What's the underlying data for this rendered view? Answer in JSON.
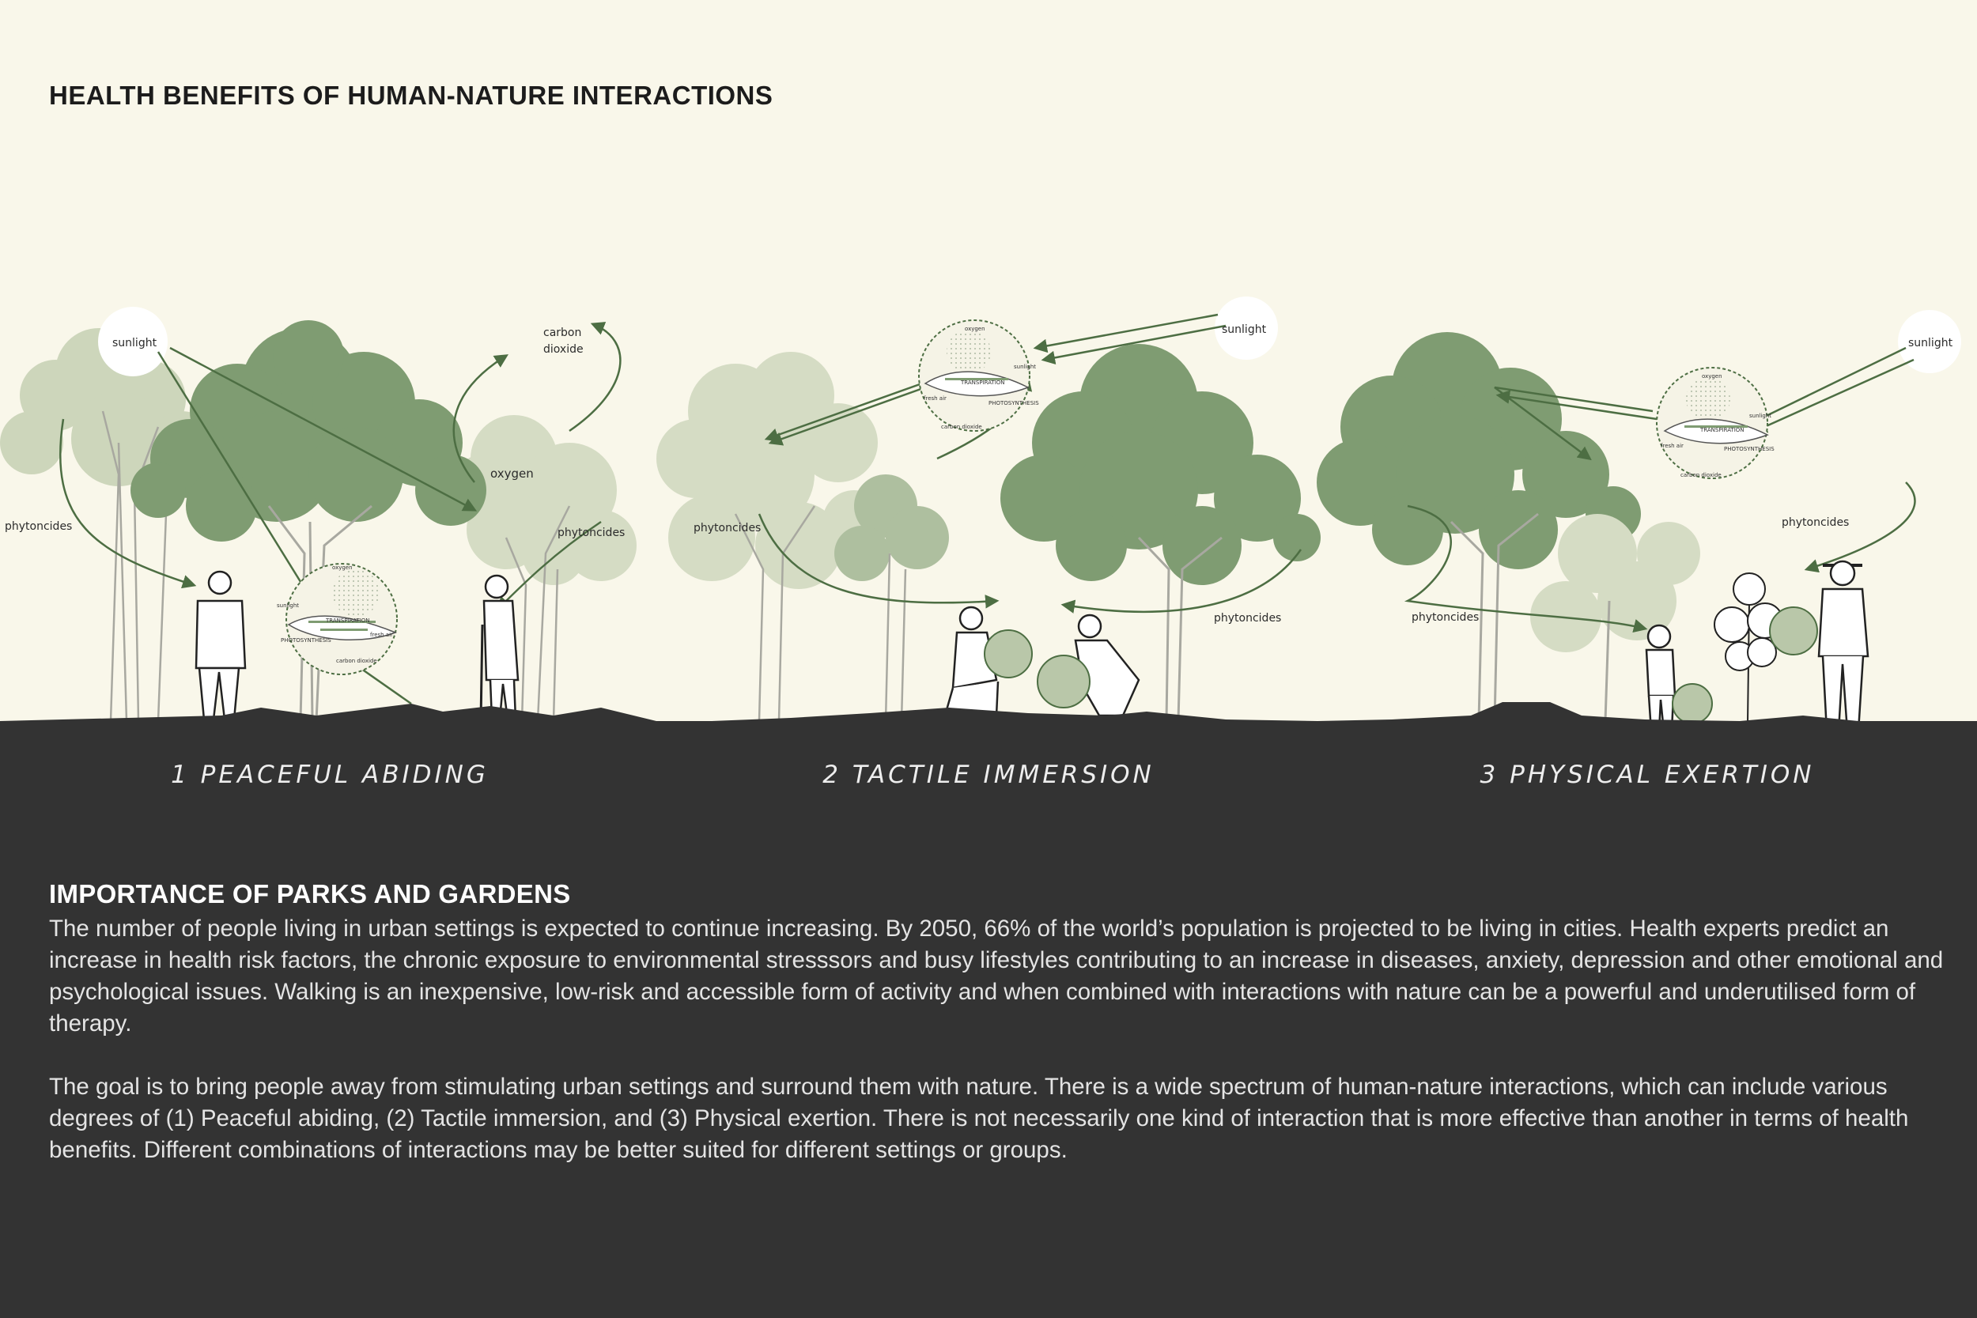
{
  "title": "HEALTH BENEFITS OF HUMAN-NATURE INTERACTIONS",
  "colors": {
    "background": "#f9f7ea",
    "ground": "#333333",
    "tree_dark": "#7f9c72",
    "tree_light": "#c9d3b6",
    "arrow": "#4d6e43"
  },
  "panels": [
    {
      "caption": "1 PEACEFUL ABIDING",
      "labels": {
        "sunlight": "sunlight",
        "carbon": "carbon",
        "dioxide": "dioxide",
        "oxygen": "oxygen",
        "phytoncides_left": "phytoncides",
        "phytoncides_right": "phytoncides"
      }
    },
    {
      "caption": "2 TACTILE IMMERSION",
      "labels": {
        "sunlight": "sunlight",
        "phytoncides_left": "phytoncides",
        "phytoncides_right": "phytoncides"
      }
    },
    {
      "caption": "3 PHYSICAL EXERTION",
      "labels": {
        "sunlight": "sunlight",
        "phytoncides_left": "phytoncides",
        "phytoncides_right": "phytoncides"
      }
    }
  ],
  "process_diagram": {
    "oxygen": "oxygen",
    "sunlight": "sunlight",
    "transpiration": "TRANSPIRATION",
    "photosynthesis": "PHOTOSYNTHESIS",
    "fresh_air": "fresh air",
    "carbon_dioxide": "carbon dioxide"
  },
  "section": {
    "title": "IMPORTANCE OF PARKS AND GARDENS",
    "paragraph_1": "The number of people living in urban settings is expected to continue increasing. By 2050, 66% of the world’s population is projected to be living in cities. Health experts predict an increase in health risk factors, the chronic exposure to environmental stresssors and busy lifestyles contributing to an increase in diseases, anxiety, depression and other emotional and psychological issues. Walking is an inexpensive, low-risk and accessible form of activity and when combined with interactions with nature can be a powerful and underutilised form of therapy.",
    "paragraph_2": "The goal is to bring people away from stimulating urban settings and surround them with nature. There is a wide spectrum of human-nature interactions, which can include various degrees of (1) Peaceful abiding, (2) Tactile immersion, and (3) Physical exertion. There is not necessarily one kind of interaction that is more effective than another in terms of health benefits. Different combinations of interactions may be better suited for different settings or groups."
  }
}
